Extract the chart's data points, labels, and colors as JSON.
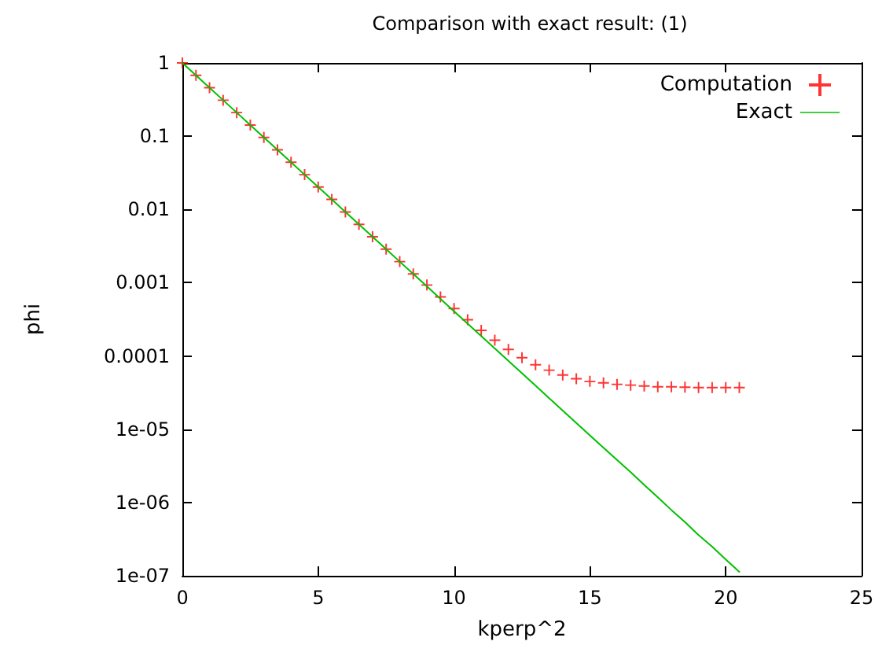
{
  "chart_data": {
    "type": "scatter",
    "title": "Comparison with exact result: (1)",
    "xlabel": "kperp^2",
    "ylabel": "phi",
    "x": [
      0,
      0.5,
      1,
      1.5,
      2,
      2.5,
      3,
      3.5,
      4,
      4.5,
      5,
      5.5,
      6,
      6.5,
      7,
      7.5,
      8,
      8.5,
      9,
      9.5,
      10,
      10.5,
      11,
      11.5,
      12,
      12.5,
      13,
      13.5,
      14,
      14.5,
      15,
      15.5,
      16,
      16.5,
      17,
      17.5,
      18,
      18.5,
      19,
      19.5,
      20,
      20.5
    ],
    "series": [
      {
        "name": "Computation",
        "type": "scatter",
        "marker": "cross",
        "color": "#ff0000",
        "values": [
          1,
          0.676,
          0.458,
          0.31,
          0.21,
          0.142,
          0.0962,
          0.0651,
          0.0441,
          0.0298,
          0.0202,
          0.0137,
          0.00926,
          0.00627,
          0.00424,
          0.00287,
          0.00194,
          0.00132,
          0.00093,
          0.00064,
          0.000445,
          0.000313,
          0.000224,
          0.000164,
          0.000123,
          9.5e-05,
          7.6e-05,
          6.4e-05,
          5.5e-05,
          4.9e-05,
          4.5e-05,
          4.3e-05,
          4.1e-05,
          4e-05,
          3.9e-05,
          3.8e-05,
          3.8e-05,
          3.75e-05,
          3.7e-05,
          3.7e-05,
          3.7e-05,
          3.7e-05
        ]
      },
      {
        "name": "Exact",
        "type": "line",
        "marker": "none",
        "color": "#00c000",
        "values": [
          1,
          0.676,
          0.458,
          0.31,
          0.21,
          0.142,
          0.0962,
          0.0651,
          0.0441,
          0.0298,
          0.0202,
          0.0137,
          0.00926,
          0.00627,
          0.00424,
          0.00287,
          0.00194,
          0.00132,
          0.000891,
          0.000603,
          0.000408,
          0.000276,
          0.000187,
          0.000127,
          8.57e-05,
          5.8e-05,
          3.93e-05,
          2.66e-05,
          1.8e-05,
          1.22e-05,
          8.25e-06,
          5.6e-06,
          3.8e-06,
          2.6e-06,
          1.74e-06,
          1.18e-06,
          7.9e-07,
          5.4e-07,
          3.6e-07,
          2.5e-07,
          1.67e-07,
          1.13e-07
        ]
      }
    ],
    "xlim": [
      0,
      25
    ],
    "xticks": [
      0,
      5,
      10,
      15,
      20,
      25
    ],
    "log": "y",
    "ylim": [
      1e-07,
      1
    ],
    "yticks": [
      {
        "value": 1e-07,
        "label": "1e-07"
      },
      {
        "value": 1e-06,
        "label": "1e-06"
      },
      {
        "value": 1e-05,
        "label": "1e-05"
      },
      0.0001,
      0.001,
      0.01,
      0.1,
      1
    ],
    "grid": false,
    "legend": "top right"
  }
}
